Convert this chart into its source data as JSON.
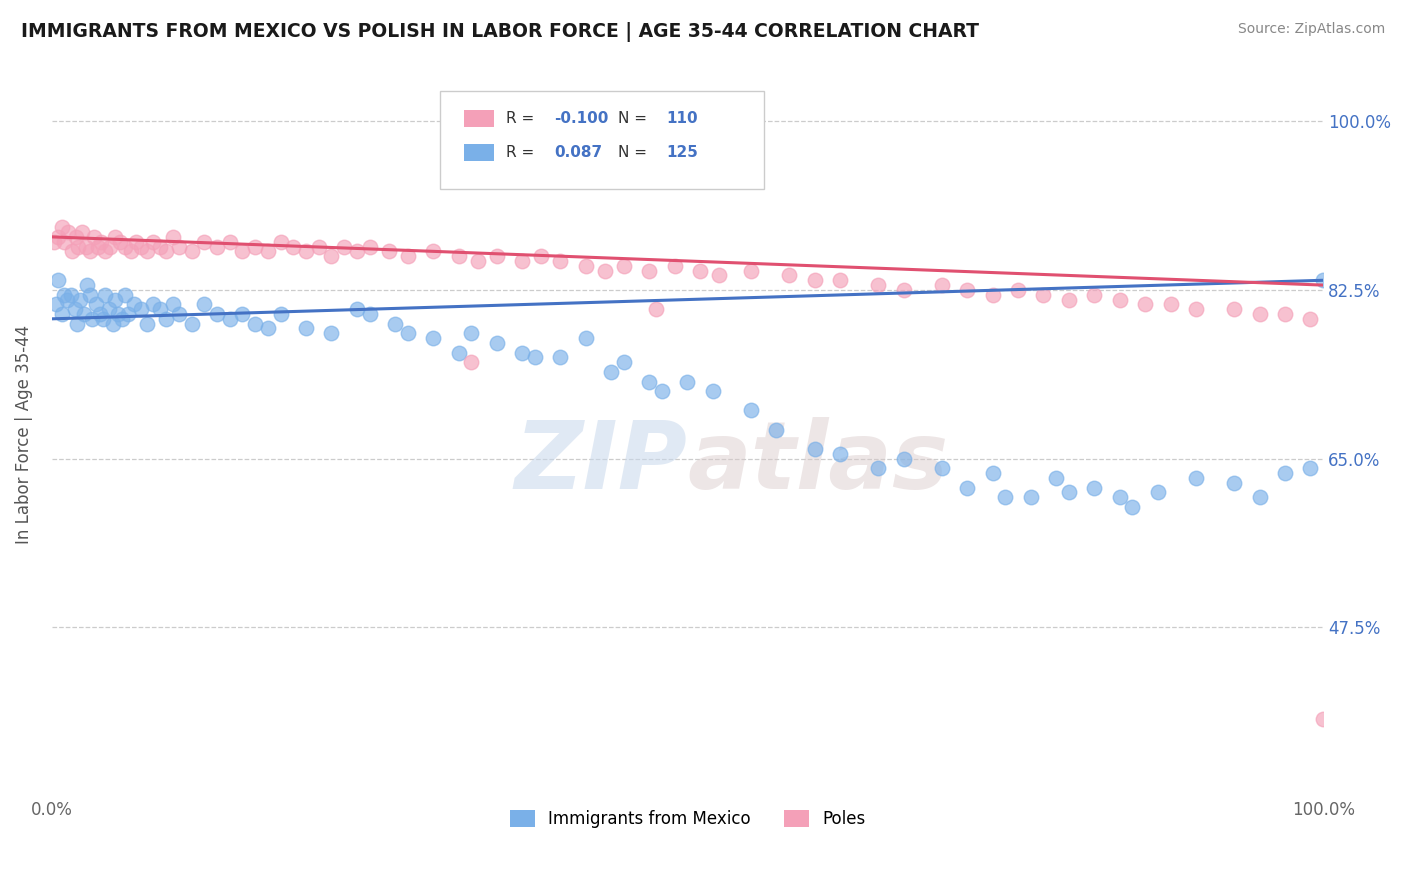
{
  "title": "IMMIGRANTS FROM MEXICO VS POLISH IN LABOR FORCE | AGE 35-44 CORRELATION CHART",
  "source": "Source: ZipAtlas.com",
  "ylabel": "In Labor Force | Age 35-44",
  "ytick_vals": [
    47.5,
    65.0,
    82.5,
    100.0
  ],
  "ytick_labels": [
    "47.5%",
    "65.0%",
    "82.5%",
    "100.0%"
  ],
  "blue_color": "#7ab0e8",
  "pink_color": "#f4a0b8",
  "blue_line_color": "#4472c4",
  "pink_line_color": "#e05070",
  "watermark_color": "#d0dff0",
  "background_color": "#ffffff",
  "legend_R_blue": "0.087",
  "legend_N_blue": "125",
  "legend_R_pink": "-0.100",
  "legend_N_pink": "110",
  "mexico_x": [
    0.3,
    0.5,
    0.8,
    1.0,
    1.2,
    1.5,
    1.8,
    2.0,
    2.2,
    2.5,
    2.8,
    3.0,
    3.2,
    3.5,
    3.8,
    4.0,
    4.2,
    4.5,
    4.8,
    5.0,
    5.2,
    5.5,
    5.8,
    6.0,
    6.5,
    7.0,
    7.5,
    8.0,
    8.5,
    9.0,
    9.5,
    10.0,
    11.0,
    12.0,
    13.0,
    14.0,
    15.0,
    16.0,
    17.0,
    18.0,
    20.0,
    22.0,
    24.0,
    25.0,
    27.0,
    28.0,
    30.0,
    32.0,
    33.0,
    35.0,
    37.0,
    38.0,
    40.0,
    42.0,
    44.0,
    45.0,
    47.0,
    48.0,
    50.0,
    52.0,
    55.0,
    57.0,
    60.0,
    62.0,
    65.0,
    67.0,
    70.0,
    72.0,
    74.0,
    75.0,
    77.0,
    79.0,
    80.0,
    82.0,
    84.0,
    85.0,
    87.0,
    90.0,
    93.0,
    95.0,
    97.0,
    99.0,
    100.0
  ],
  "mexico_y": [
    81.0,
    83.5,
    80.0,
    82.0,
    81.5,
    82.0,
    80.5,
    79.0,
    81.5,
    80.0,
    83.0,
    82.0,
    79.5,
    81.0,
    80.0,
    79.5,
    82.0,
    80.5,
    79.0,
    81.5,
    80.0,
    79.5,
    82.0,
    80.0,
    81.0,
    80.5,
    79.0,
    81.0,
    80.5,
    79.5,
    81.0,
    80.0,
    79.0,
    81.0,
    80.0,
    79.5,
    80.0,
    79.0,
    78.5,
    80.0,
    78.5,
    78.0,
    80.5,
    80.0,
    79.0,
    78.0,
    77.5,
    76.0,
    78.0,
    77.0,
    76.0,
    75.5,
    75.5,
    77.5,
    74.0,
    75.0,
    73.0,
    72.0,
    73.0,
    72.0,
    70.0,
    68.0,
    66.0,
    65.5,
    64.0,
    65.0,
    64.0,
    62.0,
    63.5,
    61.0,
    61.0,
    63.0,
    61.5,
    62.0,
    61.0,
    60.0,
    61.5,
    63.0,
    62.5,
    61.0,
    63.5,
    64.0,
    83.5
  ],
  "polish_x": [
    0.2,
    0.5,
    0.8,
    1.0,
    1.3,
    1.6,
    1.9,
    2.1,
    2.4,
    2.7,
    3.0,
    3.3,
    3.6,
    3.9,
    4.2,
    4.6,
    5.0,
    5.4,
    5.8,
    6.2,
    6.6,
    7.0,
    7.5,
    8.0,
    8.5,
    9.0,
    9.5,
    10.0,
    11.0,
    12.0,
    13.0,
    14.0,
    15.0,
    16.0,
    17.0,
    18.0,
    19.0,
    20.0,
    21.0,
    22.0,
    23.0,
    24.0,
    25.0,
    26.5,
    28.0,
    30.0,
    32.0,
    33.5,
    35.0,
    37.0,
    38.5,
    40.0,
    42.0,
    43.5,
    45.0,
    47.0,
    49.0,
    51.0,
    52.5,
    55.0,
    58.0,
    60.0,
    33.0,
    47.5,
    62.0,
    65.0,
    67.0,
    70.0,
    72.0,
    74.0,
    76.0,
    78.0,
    80.0,
    82.0,
    84.0,
    86.0,
    88.0,
    90.0,
    93.0,
    95.0,
    97.0,
    99.0,
    100.0
  ],
  "polish_y": [
    87.5,
    88.0,
    89.0,
    87.5,
    88.5,
    86.5,
    88.0,
    87.0,
    88.5,
    87.0,
    86.5,
    88.0,
    87.0,
    87.5,
    86.5,
    87.0,
    88.0,
    87.5,
    87.0,
    86.5,
    87.5,
    87.0,
    86.5,
    87.5,
    87.0,
    86.5,
    88.0,
    87.0,
    86.5,
    87.5,
    87.0,
    87.5,
    86.5,
    87.0,
    86.5,
    87.5,
    87.0,
    86.5,
    87.0,
    86.0,
    87.0,
    86.5,
    87.0,
    86.5,
    86.0,
    86.5,
    86.0,
    85.5,
    86.0,
    85.5,
    86.0,
    85.5,
    85.0,
    84.5,
    85.0,
    84.5,
    85.0,
    84.5,
    84.0,
    84.5,
    84.0,
    83.5,
    75.0,
    80.5,
    83.5,
    83.0,
    82.5,
    83.0,
    82.5,
    82.0,
    82.5,
    82.0,
    81.5,
    82.0,
    81.5,
    81.0,
    81.0,
    80.5,
    80.5,
    80.0,
    80.0,
    79.5,
    38.0
  ]
}
